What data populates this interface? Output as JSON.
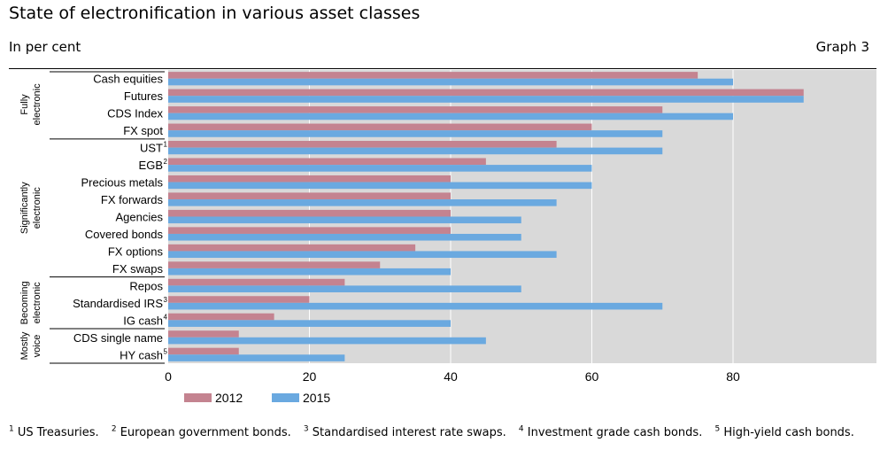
{
  "header": {
    "title": "State of electronification in various asset classes",
    "subtitle": "In per cent",
    "graph_label": "Graph 3"
  },
  "colors": {
    "s2012": "#c48390",
    "s2015": "#6aa9e0",
    "plot_bg": "#d9d9d9",
    "grid": "#ffffff"
  },
  "chart_data": {
    "type": "bar",
    "orientation": "horizontal",
    "categories": [
      "Cash equities",
      "Futures",
      "CDS Index",
      "FX spot",
      "UST",
      "EGB",
      "Precious metals",
      "FX forwards",
      "Agencies",
      "Covered bonds",
      "FX options",
      "FX swaps",
      "Repos",
      "Standardised IRS",
      "IG cash",
      "CDS single name",
      "HY cash"
    ],
    "category_superscripts": [
      "",
      "",
      "",
      "",
      "1",
      "2",
      "",
      "",
      "",
      "",
      "",
      "",
      "",
      "3",
      "4",
      "",
      "5"
    ],
    "series": [
      {
        "name": "2012",
        "values": [
          75,
          90,
          70,
          60,
          55,
          45,
          40,
          40,
          40,
          40,
          35,
          30,
          25,
          20,
          15,
          10,
          10
        ]
      },
      {
        "name": "2015",
        "values": [
          80,
          90,
          80,
          70,
          70,
          60,
          60,
          55,
          50,
          50,
          55,
          40,
          50,
          70,
          40,
          45,
          25
        ]
      }
    ],
    "xlim": [
      0,
      100
    ],
    "xticks": [
      0,
      20,
      40,
      60,
      80
    ],
    "grid": true,
    "legend_position": "bottom-left",
    "groups": [
      {
        "label_lines": [
          "Fully",
          "electronic"
        ]
      },
      {
        "label_lines": [
          "Significantly",
          "electronic"
        ]
      },
      {
        "label_lines": [
          "Becoming",
          "electronic"
        ]
      },
      {
        "label_lines": [
          "Mostly",
          "voice"
        ]
      }
    ]
  },
  "footnotes": [
    {
      "num": "1",
      "text": "US Treasuries."
    },
    {
      "num": "2",
      "text": "European government bonds."
    },
    {
      "num": "3",
      "text": "Standardised interest rate swaps."
    },
    {
      "num": "4",
      "text": "Investment grade cash bonds."
    },
    {
      "num": "5",
      "text": "High-yield cash bonds."
    }
  ]
}
